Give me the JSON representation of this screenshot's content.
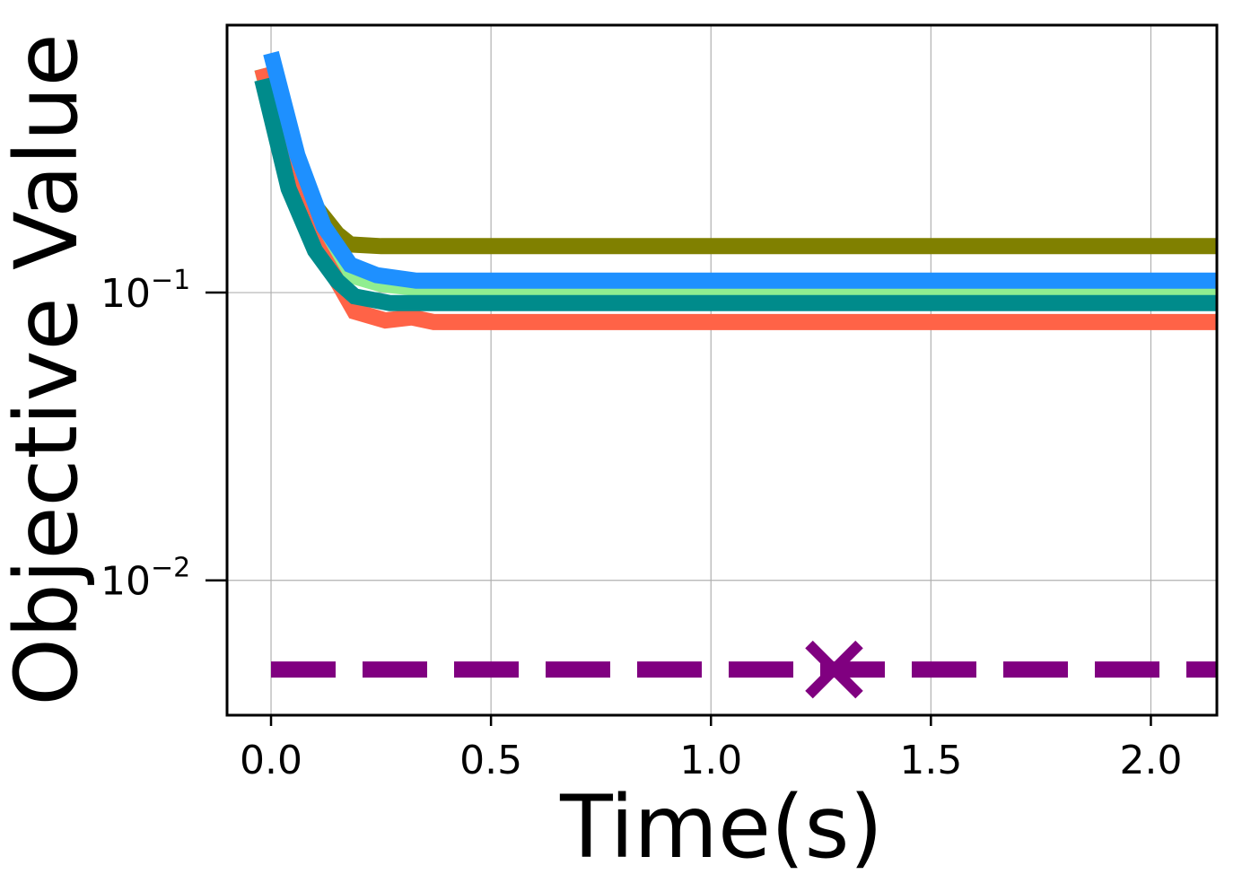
{
  "chart_data": {
    "type": "line",
    "xlabel": "Time(s)",
    "ylabel": "Objective Value",
    "xlim": [
      -0.1,
      2.15
    ],
    "ylim": [
      0.0034,
      0.85
    ],
    "yscale": "log",
    "grid": true,
    "xticks": [
      {
        "value": 0.0,
        "label": "0.0"
      },
      {
        "value": 0.5,
        "label": "0.5"
      },
      {
        "value": 1.0,
        "label": "1.0"
      },
      {
        "value": 1.5,
        "label": "1.5"
      },
      {
        "value": 2.0,
        "label": "2.0"
      }
    ],
    "yticks": [
      {
        "value": 0.1,
        "base": "10",
        "exp": "−1"
      },
      {
        "value": 0.01,
        "base": "10",
        "exp": "−2"
      }
    ],
    "series": [
      {
        "color": "#808000",
        "dash": "solid",
        "x": [
          -0.02,
          0.04,
          0.1,
          0.15,
          0.18,
          0.25,
          2.15
        ],
        "y": [
          0.55,
          0.3,
          0.2,
          0.16,
          0.147,
          0.145,
          0.145
        ]
      },
      {
        "color": "#90EE90",
        "dash": "solid",
        "x": [
          -0.02,
          0.04,
          0.1,
          0.15,
          0.18,
          0.25,
          0.35,
          2.15
        ],
        "y": [
          0.6,
          0.25,
          0.16,
          0.13,
          0.115,
          0.107,
          0.103,
          0.103
        ]
      },
      {
        "color": "#FF6347",
        "dash": "solid",
        "x": [
          -0.02,
          0.04,
          0.1,
          0.15,
          0.19,
          0.26,
          0.32,
          0.37,
          2.15
        ],
        "y": [
          0.6,
          0.28,
          0.15,
          0.11,
          0.086,
          0.08,
          0.082,
          0.079,
          0.079
        ]
      },
      {
        "color": "#008B8B",
        "dash": "solid",
        "x": [
          -0.02,
          0.04,
          0.1,
          0.15,
          0.19,
          0.27,
          2.15
        ],
        "y": [
          0.55,
          0.23,
          0.14,
          0.11,
          0.097,
          0.092,
          0.092
        ]
      },
      {
        "color": "#1E90FF",
        "dash": "solid",
        "x": [
          0.0,
          0.06,
          0.12,
          0.18,
          0.24,
          0.33,
          2.15
        ],
        "y": [
          0.68,
          0.3,
          0.17,
          0.125,
          0.115,
          0.11,
          0.11
        ]
      },
      {
        "color": "#800080",
        "dash": "dashed",
        "x": [
          0.0,
          2.15
        ],
        "y": [
          0.0049,
          0.0049
        ]
      }
    ],
    "markers": [
      {
        "x": 1.28,
        "y": 0.0049,
        "symbol": "x",
        "color": "#800080"
      }
    ]
  }
}
